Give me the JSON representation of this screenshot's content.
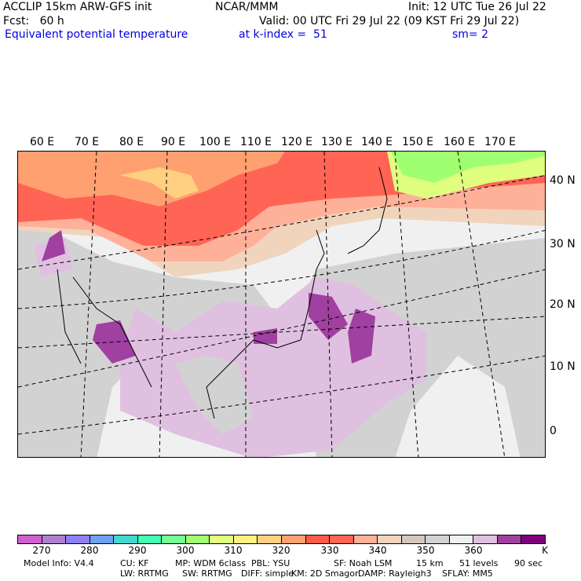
{
  "header": {
    "model": "ACCLIP 15km ARW-GFS init",
    "org": "NCAR/MMM",
    "init": "Init: 12 UTC Tue 26 Jul 22",
    "fcst": "Fcst:   60 h",
    "valid": "Valid: 00 UTC Fri 29 Jul 22 (09 KST Fri 29 Jul 22)",
    "field": "Equivalent potential temperature",
    "level": "at k-index =  51",
    "smooth": "sm= 2"
  },
  "chart_data": {
    "type": "heatmap",
    "title": "Equivalent potential temperature",
    "units": "K",
    "lon_labels": [
      "60 E",
      "70 E",
      "80 E",
      "90 E",
      "100 E",
      "110 E",
      "120 E",
      "130 E",
      "140 E",
      "150 E",
      "160 E",
      "170 E"
    ],
    "lat_labels": [
      "40 N",
      "30 N",
      "20 N",
      "10 N",
      "0"
    ],
    "colorbar": {
      "ticks": [
        "270",
        "280",
        "290",
        "300",
        "310",
        "320",
        "330",
        "340",
        "350",
        "360"
      ],
      "unit_label": "K",
      "colors": [
        "#d060d0",
        "#b080d0",
        "#9080f0",
        "#70a0f0",
        "#40d8d0",
        "#40ffb0",
        "#70ff90",
        "#a0ff70",
        "#e0ff80",
        "#fff080",
        "#ffd080",
        "#ffa070",
        "#ff5a48",
        "#ff6454",
        "#ffb098",
        "#f0d4bc",
        "#d2c8c0",
        "#d2d2d2",
        "#f0f0f0",
        "#e0c0e0",
        "#a040a0",
        "#800080"
      ]
    }
  },
  "footer": {
    "line1": [
      "Model Info: V4.4",
      "CU: KF",
      "MP: WDM 6class",
      "PBL: YSU",
      "SF: Noah LSM",
      "15 km",
      "51 levels",
      "90 sec"
    ],
    "line2": [
      "LW: RRTMG",
      "SW: RRTMG",
      "DIFF: simple",
      "KM: 2D Smagor",
      "DAMP: Rayleigh3",
      "SFLAY: MM5"
    ]
  }
}
